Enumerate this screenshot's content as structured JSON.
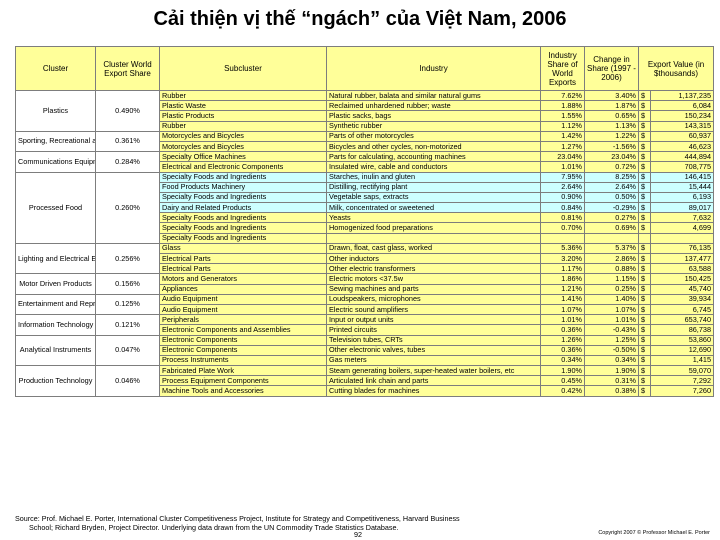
{
  "title": "Cải thiện vị thế “ngách” của Việt Nam, 2006",
  "headers": {
    "cluster": "Cluster",
    "share": "Cluster World Export Share",
    "subcluster": "Subcluster",
    "industry": "Industry",
    "ind_share": "Industry Share of World Exports",
    "change": "Change in Share (1997 - 2006)",
    "export": "Export Value (in $thousands)"
  },
  "rows": [
    {
      "cluster": "Plastics",
      "share": "0.490%",
      "span": 4,
      "sub": "Rubber",
      "ind": "Natural rubber, balata and similar natural gums",
      "is": "7.62%",
      "ch": "3.40%",
      "d": "$",
      "ev": "1,137,235",
      "hl": "y"
    },
    {
      "sub": "Plastic Waste",
      "ind": "Reclaimed unhardened rubber; waste",
      "is": "1.88%",
      "ch": "1.87%",
      "d": "$",
      "ev": "6,084",
      "hl": "y"
    },
    {
      "sub": "Plastic Products",
      "ind": "Plastic sacks, bags",
      "is": "1.55%",
      "ch": "0.65%",
      "d": "$",
      "ev": "150,234",
      "hl": "y"
    },
    {
      "sub": "Rubber",
      "ind": "Synthetic rubber",
      "is": "1.12%",
      "ch": "1.13%",
      "d": "$",
      "ev": "143,315",
      "hl": "y"
    },
    {
      "cluster": "Sporting, Recreational and Children's Goods",
      "share": "0.361%",
      "span": 2,
      "sub": "Motorcycles and Bicycles",
      "ind": "Parts of other motorcycles",
      "is": "1.42%",
      "ch": "1.22%",
      "d": "$",
      "ev": "60,937",
      "hl": "y"
    },
    {
      "sub": "Motorcycles and Bicycles",
      "ind": "Bicycles and other cycles, non-motorized",
      "is": "1.27%",
      "ch": "-1.56%",
      "d": "$",
      "ev": "46,623",
      "hl": "y"
    },
    {
      "cluster": "Communications Equipment",
      "share": "0.284%",
      "span": 2,
      "sub": "Specialty Office Machines",
      "ind": "Parts for calculating, accounting machines",
      "is": "23.04%",
      "ch": "23.04%",
      "d": "$",
      "ev": "444,894",
      "hl": "y"
    },
    {
      "sub": "Electrical and Electronic Components",
      "ind": "Insulated wire, cable and conductors",
      "is": "1.01%",
      "ch": "0.72%",
      "d": "$",
      "ev": "708,775",
      "hl": "y"
    },
    {
      "cluster": "Processed Food",
      "share": "0.260%",
      "span": 7,
      "sub": "Specialty Foods and Ingredients",
      "ind": "Starches, inulin and gluten",
      "is": "7.95%",
      "ch": "8.25%",
      "d": "$",
      "ev": "146,415",
      "hl": "b"
    },
    {
      "sub": "Food Products Machinery",
      "ind": "Distilling, rectifying plant",
      "is": "2.64%",
      "ch": "2.64%",
      "d": "$",
      "ev": "15,444",
      "hl": "b"
    },
    {
      "sub": "Specialty Foods and Ingredients",
      "ind": "Vegetable saps, extracts",
      "is": "0.90%",
      "ch": "0.50%",
      "d": "$",
      "ev": "6,193",
      "hl": "b"
    },
    {
      "sub": "Dairy and Related Products",
      "ind": "Milk, concentrated or sweetened",
      "is": "0.84%",
      "ch": "-0.29%",
      "d": "$",
      "ev": "89,017",
      "hl": "b"
    },
    {
      "sub": "Specialty Foods and Ingredients",
      "ind": "Yeasts",
      "is": "0.81%",
      "ch": "0.27%",
      "d": "$",
      "ev": "7,632",
      "hl": "y"
    },
    {
      "sub": "Specialty Foods and Ingredients",
      "ind": "Homogenized food preparations",
      "is": "0.70%",
      "ch": "0.69%",
      "d": "$",
      "ev": "4,699",
      "hl": "y"
    },
    {
      "sub": "Specialty Foods and Ingredients",
      "ind": "",
      "is": "",
      "ch": "",
      "d": "",
      "ev": "",
      "hl": "y"
    },
    {
      "cluster": "Lighting and Electrical Equipment",
      "share": "0.256%",
      "span": 3,
      "sub": "Glass",
      "ind": "Drawn, float, cast glass, worked",
      "is": "5.36%",
      "ch": "5.37%",
      "d": "$",
      "ev": "76,135",
      "hl": "y"
    },
    {
      "sub": "Electrical Parts",
      "ind": "Other inductors",
      "is": "3.20%",
      "ch": "2.86%",
      "d": "$",
      "ev": "137,477",
      "hl": "y"
    },
    {
      "sub": "Electrical Parts",
      "ind": "Other electric transformers",
      "is": "1.17%",
      "ch": "0.88%",
      "d": "$",
      "ev": "63,588",
      "hl": "y"
    },
    {
      "cluster": "Motor Driven Products",
      "share": "0.156%",
      "span": 2,
      "sub": "Motors and Generators",
      "ind": "Electric motors <37.5w",
      "is": "1.86%",
      "ch": "1.15%",
      "d": "$",
      "ev": "150,425",
      "hl": "y"
    },
    {
      "sub": "Appliances",
      "ind": "Sewing machines and parts",
      "is": "1.21%",
      "ch": "0.25%",
      "d": "$",
      "ev": "45,740",
      "hl": "y"
    },
    {
      "cluster": "Entertainment and Reproduction Equipment",
      "share": "0.125%",
      "span": 2,
      "sub": "Audio Equipment",
      "ind": "Loudspeakers, microphones",
      "is": "1.41%",
      "ch": "1.40%",
      "d": "$",
      "ev": "39,934",
      "hl": "y"
    },
    {
      "sub": "Audio Equipment",
      "ind": "Electric sound amplifiers",
      "is": "1.07%",
      "ch": "1.07%",
      "d": "$",
      "ev": "6,745",
      "hl": "y"
    },
    {
      "cluster": "Information Technology",
      "share": "0.121%",
      "span": 2,
      "sub": "Peripherals",
      "ind": "Input or output units",
      "is": "1.01%",
      "ch": "1.01%",
      "d": "$",
      "ev": "653,740",
      "hl": "y"
    },
    {
      "sub": "Electronic Components and Assemblies",
      "ind": "Printed circuits",
      "is": "0.36%",
      "ch": "-0.43%",
      "d": "$",
      "ev": "86,738",
      "hl": "y"
    },
    {
      "cluster": "Analytical Instruments",
      "share": "0.047%",
      "span": 3,
      "sub": "Electronic Components",
      "ind": "Television tubes, CRTs",
      "is": "1.26%",
      "ch": "1.25%",
      "d": "$",
      "ev": "53,860",
      "hl": "y"
    },
    {
      "sub": "Electronic Components",
      "ind": "Other electronic valves, tubes",
      "is": "0.36%",
      "ch": "-0.50%",
      "d": "$",
      "ev": "12,690",
      "hl": "y"
    },
    {
      "sub": "Process Instruments",
      "ind": "Gas meters",
      "is": "0.34%",
      "ch": "0.34%",
      "d": "$",
      "ev": "1,415",
      "hl": "y"
    },
    {
      "cluster": "Production Technology",
      "share": "0.046%",
      "span": 3,
      "sub": "Fabricated Plate Work",
      "ind": "Steam generating boilers, super-heated water boilers, etc",
      "is": "1.90%",
      "ch": "1.90%",
      "d": "$",
      "ev": "59,070",
      "hl": "y"
    },
    {
      "sub": "Process Equipment Components",
      "ind": "Articulated link chain and parts",
      "is": "0.45%",
      "ch": "0.31%",
      "d": "$",
      "ev": "7,292",
      "hl": "y"
    },
    {
      "sub": "Machine Tools and Accessories",
      "ind": "Cutting blades for machines",
      "is": "0.42%",
      "ch": "0.38%",
      "d": "$",
      "ev": "7,260",
      "hl": "y"
    }
  ],
  "source_line1": "Source: Prof. Michael E. Porter, International Cluster Competitiveness Project, Institute for Strategy and Competitiveness, Harvard Business",
  "source_line2": "School; Richard Bryden, Project Director. Underlying data drawn from the UN Commodity Trade Statistics Database.",
  "page_number": "92",
  "copyright": "Copyright 2007 © Professor Michael E. Porter"
}
